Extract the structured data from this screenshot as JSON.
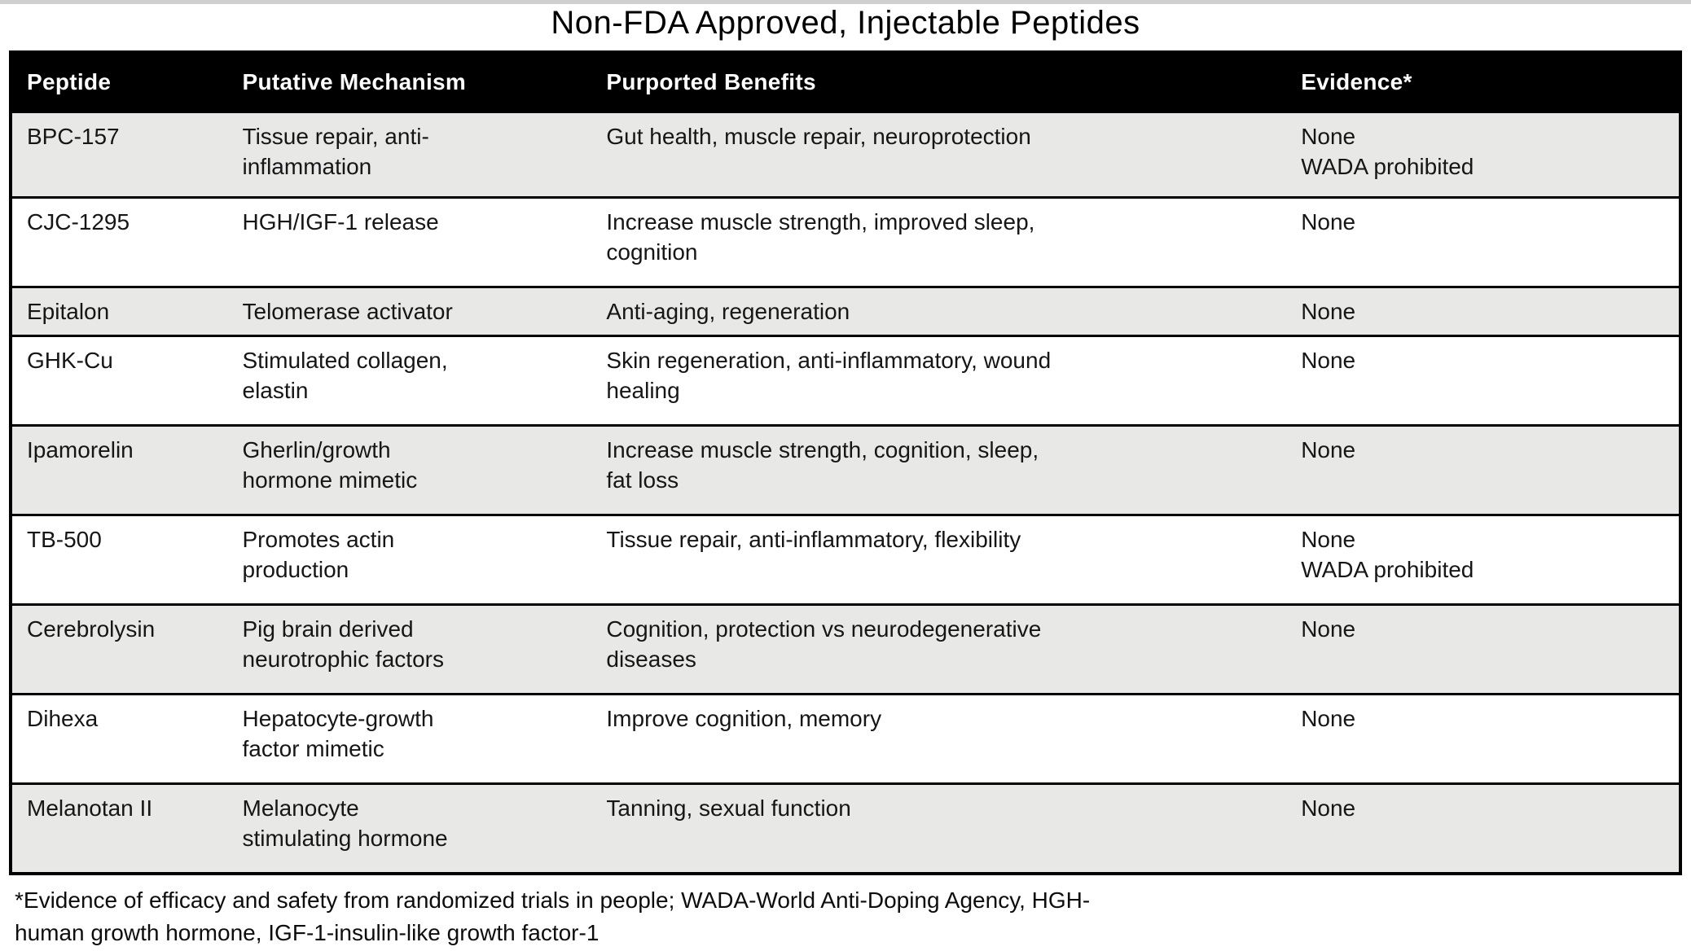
{
  "page": {
    "title": "Non-FDA Approved, Injectable Peptides"
  },
  "table": {
    "columns": [
      "Peptide",
      "Putative Mechanism",
      "Purported Benefits",
      "Evidence*"
    ],
    "rows": [
      {
        "peptide": "BPC-157",
        "mechanism_lines": [
          "Tissue repair, anti-",
          "inflammation"
        ],
        "benefit_lines": [
          "Gut health, muscle repair, neuroprotection"
        ],
        "evidence_lines": [
          "None",
          "WADA prohibited"
        ]
      },
      {
        "peptide": "CJC-1295",
        "mechanism_lines": [
          "HGH/IGF-1 release"
        ],
        "benefit_lines": [
          "Increase muscle strength, improved sleep,",
          "cognition"
        ],
        "evidence_lines": [
          "None"
        ]
      },
      {
        "peptide": "Epitalon",
        "mechanism_lines": [
          "Telomerase activator"
        ],
        "benefit_lines": [
          "Anti-aging, regeneration"
        ],
        "evidence_lines": [
          "None"
        ]
      },
      {
        "peptide": "GHK-Cu",
        "mechanism_lines": [
          "Stimulated collagen,",
          "elastin"
        ],
        "benefit_lines": [
          "Skin regeneration, anti-inflammatory, wound",
          "healing"
        ],
        "evidence_lines": [
          "None"
        ]
      },
      {
        "peptide": "Ipamorelin",
        "mechanism_lines": [
          "Gherlin/growth",
          "hormone mimetic"
        ],
        "benefit_lines": [
          "Increase muscle strength, cognition, sleep,",
          "fat loss"
        ],
        "evidence_lines": [
          "None"
        ]
      },
      {
        "peptide": "TB-500",
        "mechanism_lines": [
          "Promotes actin",
          "production"
        ],
        "benefit_lines": [
          "Tissue repair, anti-inflammatory, flexibility"
        ],
        "evidence_lines": [
          "None",
          "WADA prohibited"
        ]
      },
      {
        "peptide": "Cerebrolysin",
        "mechanism_lines": [
          "Pig brain derived",
          "neurotrophic factors"
        ],
        "benefit_lines": [
          "Cognition, protection vs neurodegenerative",
          "diseases"
        ],
        "evidence_lines": [
          "None"
        ]
      },
      {
        "peptide": "Dihexa",
        "mechanism_lines": [
          "Hepatocyte-growth",
          "factor mimetic"
        ],
        "benefit_lines": [
          "Improve cognition, memory"
        ],
        "evidence_lines": [
          "None"
        ]
      },
      {
        "peptide": "Melanotan II",
        "mechanism_lines": [
          "Melanocyte",
          "stimulating hormone"
        ],
        "benefit_lines": [
          "Tanning, sexual function"
        ],
        "evidence_lines": [
          "None"
        ]
      }
    ]
  },
  "footnote": {
    "line1": "*Evidence of efficacy and safety from randomized trials in people; WADA-World Anti-Doping Agency, HGH-",
    "line2": "human growth hormone, IGF-1-insulin-like growth factor-1"
  },
  "colors": {
    "header_bg": "#000000",
    "header_text": "#ffffff",
    "row_alt_bg": "#e8e8e7",
    "row_bg": "#ffffff",
    "border": "#000000",
    "top_edge": "#cfcfcf"
  }
}
